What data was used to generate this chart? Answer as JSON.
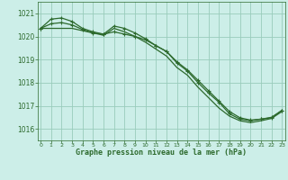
{
  "title": "Graphe pression niveau de la mer (hPa)",
  "background_color": "#cceee8",
  "grid_color": "#99ccbb",
  "line_color": "#2d6a2d",
  "xlim": [
    -0.3,
    23.3
  ],
  "ylim": [
    1015.5,
    1021.5
  ],
  "yticks": [
    1016,
    1017,
    1018,
    1019,
    1020,
    1021
  ],
  "xticks": [
    0,
    1,
    2,
    3,
    4,
    5,
    6,
    7,
    8,
    9,
    10,
    11,
    12,
    13,
    14,
    15,
    16,
    17,
    18,
    19,
    20,
    21,
    22,
    23
  ],
  "series1_x": [
    0,
    1,
    2,
    3,
    4,
    5,
    6,
    7,
    8,
    9,
    10,
    11,
    12,
    13,
    14,
    15,
    16,
    17,
    18,
    19,
    20,
    21,
    22,
    23
  ],
  "series1_y": [
    1020.35,
    1020.75,
    1020.8,
    1020.65,
    1020.35,
    1020.2,
    1020.1,
    1020.45,
    1020.35,
    1020.15,
    1019.9,
    1019.6,
    1019.35,
    1018.85,
    1018.5,
    1018.0,
    1017.55,
    1017.15,
    1016.65,
    1016.42,
    1016.35,
    1016.42,
    1016.48,
    1016.8
  ],
  "series2_x": [
    0,
    1,
    2,
    3,
    4,
    5,
    6,
    7,
    8,
    9,
    10,
    11,
    12,
    13,
    14,
    15,
    16,
    17,
    18,
    19,
    20,
    21,
    22,
    23
  ],
  "series2_y": [
    1020.35,
    1020.55,
    1020.6,
    1020.5,
    1020.3,
    1020.15,
    1020.1,
    1020.2,
    1020.1,
    1020.0,
    1019.85,
    1019.6,
    1019.35,
    1018.9,
    1018.55,
    1018.1,
    1017.65,
    1017.2,
    1016.75,
    1016.48,
    1016.38,
    1016.42,
    1016.5,
    1016.8
  ],
  "series3_x": [
    0,
    1,
    2,
    3,
    4,
    5,
    6,
    7,
    8,
    9,
    10,
    11,
    12,
    13,
    14,
    15,
    16,
    17,
    18,
    19,
    20,
    21,
    22,
    23
  ],
  "series3_y": [
    1020.35,
    1020.35,
    1020.35,
    1020.35,
    1020.25,
    1020.15,
    1020.05,
    1020.35,
    1020.2,
    1020.0,
    1019.75,
    1019.45,
    1019.15,
    1018.65,
    1018.32,
    1017.8,
    1017.35,
    1016.9,
    1016.55,
    1016.35,
    1016.27,
    1016.35,
    1016.45,
    1016.75
  ],
  "markers1_x": [
    1,
    2,
    3,
    7,
    8,
    9,
    10,
    11,
    12,
    13,
    14,
    15,
    16,
    17,
    18,
    19,
    20,
    21,
    22,
    23
  ],
  "markers1_y": [
    1020.75,
    1020.8,
    1020.65,
    1020.45,
    1020.35,
    1020.15,
    1019.9,
    1019.6,
    1019.35,
    1018.85,
    1018.5,
    1018.0,
    1017.55,
    1017.15,
    1016.65,
    1016.42,
    1016.35,
    1016.42,
    1016.48,
    1016.8
  ],
  "markers2_x": [
    1,
    2,
    3,
    7,
    8,
    9,
    10,
    11,
    12,
    13,
    14,
    15,
    16,
    17,
    18,
    19,
    20,
    21,
    22,
    23
  ],
  "markers2_y": [
    1020.55,
    1020.6,
    1020.5,
    1020.2,
    1020.1,
    1020.0,
    1019.85,
    1019.6,
    1019.35,
    1018.9,
    1018.55,
    1018.1,
    1017.65,
    1017.2,
    1016.75,
    1016.48,
    1016.38,
    1016.42,
    1016.5,
    1016.8
  ]
}
